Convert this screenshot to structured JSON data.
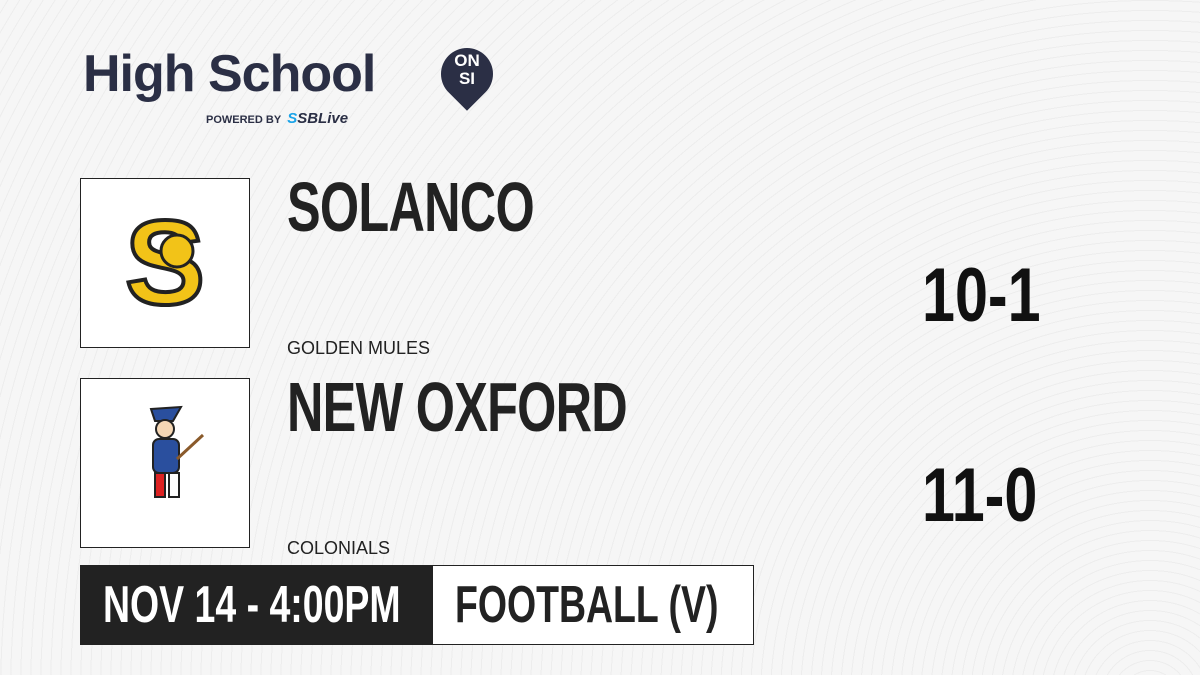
{
  "brand": {
    "title": "High School",
    "badge_top": "ON",
    "badge_bottom": "SI",
    "powered_by": "POWERED BY",
    "partner": "SBLive"
  },
  "teams": [
    {
      "name": "SOLANCO",
      "mascot": "GOLDEN MULES",
      "record": "10-1",
      "logo_color": "#f2c318"
    },
    {
      "name": "NEW OXFORD",
      "mascot": "COLONIALS",
      "record": "11-0",
      "logo_color": "#2a4f9e"
    }
  ],
  "game": {
    "datetime": "NOV 14 - 4:00PM",
    "sport": "FOOTBALL (V)"
  }
}
